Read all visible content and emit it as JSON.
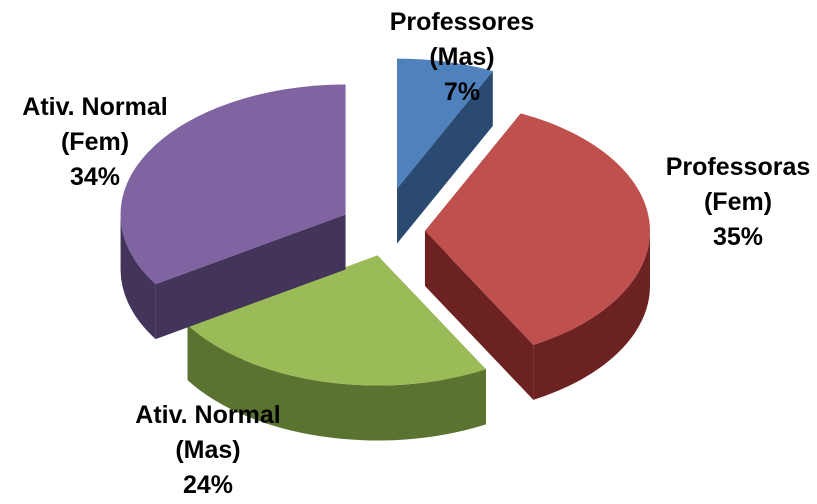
{
  "chart_data": {
    "type": "pie",
    "style": "3d-exploded",
    "title": "",
    "slices": [
      {
        "name": "Professores (Mas)",
        "label_lines": [
          "Professores",
          "(Mas)",
          "7%"
        ],
        "value": 7,
        "color": "#4F81BD",
        "side_color": "#2B4A71"
      },
      {
        "name": "Professoras (Fem)",
        "label_lines": [
          "Professoras",
          "(Fem)",
          "35%"
        ],
        "value": 35,
        "color": "#C0504D",
        "side_color": "#6B2220"
      },
      {
        "name": "Ativ. Normal (Mas)",
        "label_lines": [
          "Ativ. Normal",
          "(Mas)",
          "24%"
        ],
        "value": 24,
        "color": "#9BBB59",
        "side_color": "#5A7330"
      },
      {
        "name": "Ativ. Normal (Fem)",
        "label_lines": [
          "Ativ. Normal",
          "(Fem)",
          "34%"
        ],
        "value": 34,
        "color": "#8064A2",
        "side_color": "#43345A"
      }
    ]
  }
}
